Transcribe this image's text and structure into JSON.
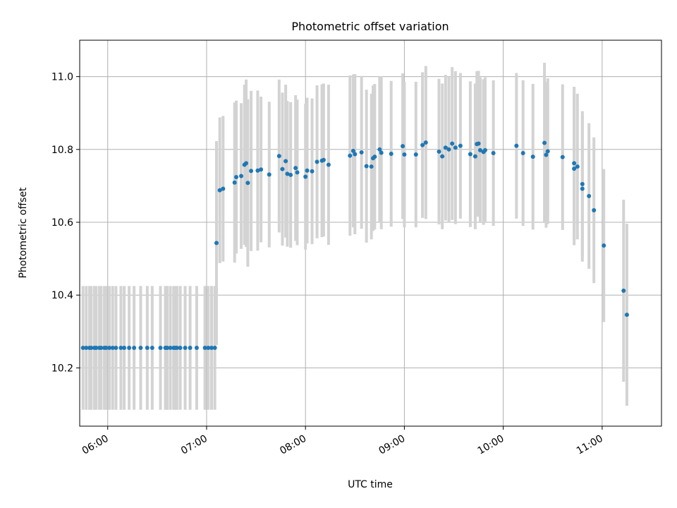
{
  "chart_data": {
    "type": "scatter",
    "title": "Photometric offset variation",
    "xlabel": "UTC time",
    "ylabel": "Photometric offset",
    "grid": true,
    "xlim": [
      "05:43",
      "11:36"
    ],
    "ylim": [
      10.04,
      11.1
    ],
    "x_ticks": [
      "06:00",
      "07:00",
      "08:00",
      "09:00",
      "10:00",
      "11:00"
    ],
    "y_ticks": [
      "10.2",
      "10.4",
      "10.6",
      "10.8",
      "11.0"
    ],
    "colors": {
      "points": "#1f77b4",
      "errorbars": "#d3d3d3"
    },
    "points": [
      {
        "t": "05:45",
        "y": 10.255,
        "err": 0.17
      },
      {
        "t": "05:47",
        "y": 10.255,
        "err": 0.17
      },
      {
        "t": "05:49",
        "y": 10.255,
        "err": 0.17
      },
      {
        "t": "05:50",
        "y": 10.255,
        "err": 0.17
      },
      {
        "t": "05:52",
        "y": 10.255,
        "err": 0.17
      },
      {
        "t": "05:53",
        "y": 10.255,
        "err": 0.17
      },
      {
        "t": "05:55",
        "y": 10.255,
        "err": 0.17
      },
      {
        "t": "05:56",
        "y": 10.255,
        "err": 0.17
      },
      {
        "t": "05:58",
        "y": 10.255,
        "err": 0.17
      },
      {
        "t": "05:59",
        "y": 10.255,
        "err": 0.17
      },
      {
        "t": "06:01",
        "y": 10.255,
        "err": 0.17
      },
      {
        "t": "06:03",
        "y": 10.255,
        "err": 0.17
      },
      {
        "t": "06:05",
        "y": 10.255,
        "err": 0.17
      },
      {
        "t": "06:08",
        "y": 10.255,
        "err": 0.17
      },
      {
        "t": "06:10",
        "y": 10.255,
        "err": 0.17
      },
      {
        "t": "06:13",
        "y": 10.255,
        "err": 0.17
      },
      {
        "t": "06:16",
        "y": 10.255,
        "err": 0.17
      },
      {
        "t": "06:20",
        "y": 10.255,
        "err": 0.17
      },
      {
        "t": "06:24",
        "y": 10.255,
        "err": 0.17
      },
      {
        "t": "06:27",
        "y": 10.255,
        "err": 0.17
      },
      {
        "t": "06:32",
        "y": 10.255,
        "err": 0.17
      },
      {
        "t": "06:36",
        "y": 10.255,
        "err": 0.17
      },
      {
        "t": "06:41",
        "y": 10.255,
        "err": 0.17
      },
      {
        "t": "06:35",
        "y": 10.255,
        "err": 0.17
      },
      {
        "t": "06:36",
        "y": 10.255,
        "err": 0.17
      },
      {
        "t": "06:38",
        "y": 10.255,
        "err": 0.17
      },
      {
        "t": "06:40",
        "y": 10.255,
        "err": 0.17
      },
      {
        "t": "06:42",
        "y": 10.255,
        "err": 0.17
      },
      {
        "t": "06:44",
        "y": 10.255,
        "err": 0.17
      },
      {
        "t": "06:47",
        "y": 10.255,
        "err": 0.17
      },
      {
        "t": "06:50",
        "y": 10.255,
        "err": 0.17
      },
      {
        "t": "06:54",
        "y": 10.255,
        "err": 0.17
      },
      {
        "t": "06:59",
        "y": 10.255,
        "err": 0.17
      },
      {
        "t": "07:01",
        "y": 10.255,
        "err": 0.17
      },
      {
        "t": "07:03",
        "y": 10.255,
        "err": 0.17
      },
      {
        "t": "07:05",
        "y": 10.255,
        "err": 0.17
      },
      {
        "t": "07:06",
        "y": 10.543,
        "err": 0.28
      },
      {
        "t": "07:08",
        "y": 10.688,
        "err": 0.2
      },
      {
        "t": "07:10",
        "y": 10.692,
        "err": 0.2
      },
      {
        "t": "07:17",
        "y": 10.709,
        "err": 0.22
      },
      {
        "t": "07:18",
        "y": 10.724,
        "err": 0.21
      },
      {
        "t": "07:21",
        "y": 10.727,
        "err": 0.2
      },
      {
        "t": "07:23",
        "y": 10.758,
        "err": 0.22
      },
      {
        "t": "07:24",
        "y": 10.762,
        "err": 0.23
      },
      {
        "t": "07:25",
        "y": 10.708,
        "err": 0.23
      },
      {
        "t": "07:27",
        "y": 10.741,
        "err": 0.22
      },
      {
        "t": "07:31",
        "y": 10.742,
        "err": 0.22
      },
      {
        "t": "07:33",
        "y": 10.745,
        "err": 0.2
      },
      {
        "t": "07:38",
        "y": 10.731,
        "err": 0.2
      },
      {
        "t": "07:44",
        "y": 10.782,
        "err": 0.21
      },
      {
        "t": "07:46",
        "y": 10.746,
        "err": 0.21
      },
      {
        "t": "07:48",
        "y": 10.768,
        "err": 0.21
      },
      {
        "t": "07:49",
        "y": 10.733,
        "err": 0.2
      },
      {
        "t": "07:51",
        "y": 10.73,
        "err": 0.2
      },
      {
        "t": "07:54",
        "y": 10.749,
        "err": 0.2
      },
      {
        "t": "07:55",
        "y": 10.737,
        "err": 0.2
      },
      {
        "t": "08:00",
        "y": 10.725,
        "err": 0.2
      },
      {
        "t": "08:01",
        "y": 10.742,
        "err": 0.2
      },
      {
        "t": "08:04",
        "y": 10.74,
        "err": 0.2
      },
      {
        "t": "08:07",
        "y": 10.766,
        "err": 0.21
      },
      {
        "t": "08:10",
        "y": 10.769,
        "err": 0.21
      },
      {
        "t": "08:11",
        "y": 10.771,
        "err": 0.21
      },
      {
        "t": "08:14",
        "y": 10.758,
        "err": 0.22
      },
      {
        "t": "08:27",
        "y": 10.783,
        "err": 0.22
      },
      {
        "t": "08:29",
        "y": 10.796,
        "err": 0.21
      },
      {
        "t": "08:30",
        "y": 10.787,
        "err": 0.22
      },
      {
        "t": "08:34",
        "y": 10.792,
        "err": 0.21
      },
      {
        "t": "08:37",
        "y": 10.754,
        "err": 0.21
      },
      {
        "t": "08:40",
        "y": 10.753,
        "err": 0.2
      },
      {
        "t": "08:41",
        "y": 10.776,
        "err": 0.2
      },
      {
        "t": "08:42",
        "y": 10.78,
        "err": 0.2
      },
      {
        "t": "08:45",
        "y": 10.8,
        "err": 0.2
      },
      {
        "t": "08:46",
        "y": 10.791,
        "err": 0.21
      },
      {
        "t": "08:52",
        "y": 10.788,
        "err": 0.2
      },
      {
        "t": "08:59",
        "y": 10.809,
        "err": 0.2
      },
      {
        "t": "09:00",
        "y": 10.786,
        "err": 0.2
      },
      {
        "t": "09:07",
        "y": 10.786,
        "err": 0.2
      },
      {
        "t": "09:11",
        "y": 10.812,
        "err": 0.2
      },
      {
        "t": "09:13",
        "y": 10.819,
        "err": 0.21
      },
      {
        "t": "09:21",
        "y": 10.794,
        "err": 0.2
      },
      {
        "t": "09:23",
        "y": 10.781,
        "err": 0.2
      },
      {
        "t": "09:25",
        "y": 10.805,
        "err": 0.2
      },
      {
        "t": "09:27",
        "y": 10.8,
        "err": 0.2
      },
      {
        "t": "09:29",
        "y": 10.816,
        "err": 0.21
      },
      {
        "t": "09:31",
        "y": 10.805,
        "err": 0.21
      },
      {
        "t": "09:34",
        "y": 10.81,
        "err": 0.2
      },
      {
        "t": "09:40",
        "y": 10.787,
        "err": 0.2
      },
      {
        "t": "09:43",
        "y": 10.781,
        "err": 0.2
      },
      {
        "t": "09:44",
        "y": 10.815,
        "err": 0.2
      },
      {
        "t": "09:45",
        "y": 10.816,
        "err": 0.2
      },
      {
        "t": "09:46",
        "y": 10.798,
        "err": 0.2
      },
      {
        "t": "09:48",
        "y": 10.793,
        "err": 0.2
      },
      {
        "t": "09:49",
        "y": 10.798,
        "err": 0.2
      },
      {
        "t": "09:54",
        "y": 10.79,
        "err": 0.2
      },
      {
        "t": "10:08",
        "y": 10.81,
        "err": 0.2
      },
      {
        "t": "10:12",
        "y": 10.79,
        "err": 0.2
      },
      {
        "t": "10:18",
        "y": 10.78,
        "err": 0.2
      },
      {
        "t": "10:25",
        "y": 10.818,
        "err": 0.22
      },
      {
        "t": "10:26",
        "y": 10.785,
        "err": 0.2
      },
      {
        "t": "10:27",
        "y": 10.795,
        "err": 0.2
      },
      {
        "t": "10:36",
        "y": 10.779,
        "err": 0.2
      },
      {
        "t": "10:43",
        "y": 10.747,
        "err": 0.21
      },
      {
        "t": "10:43",
        "y": 10.762,
        "err": 0.21
      },
      {
        "t": "10:45",
        "y": 10.753,
        "err": 0.2
      },
      {
        "t": "10:48",
        "y": 10.705,
        "err": 0.2
      },
      {
        "t": "10:48",
        "y": 10.692,
        "err": 0.2
      },
      {
        "t": "10:52",
        "y": 10.672,
        "err": 0.2
      },
      {
        "t": "10:55",
        "y": 10.633,
        "err": 0.2
      },
      {
        "t": "11:01",
        "y": 10.536,
        "err": 0.21
      },
      {
        "t": "11:13",
        "y": 10.412,
        "err": 0.25
      },
      {
        "t": "11:15",
        "y": 10.346,
        "err": 0.25
      }
    ]
  }
}
